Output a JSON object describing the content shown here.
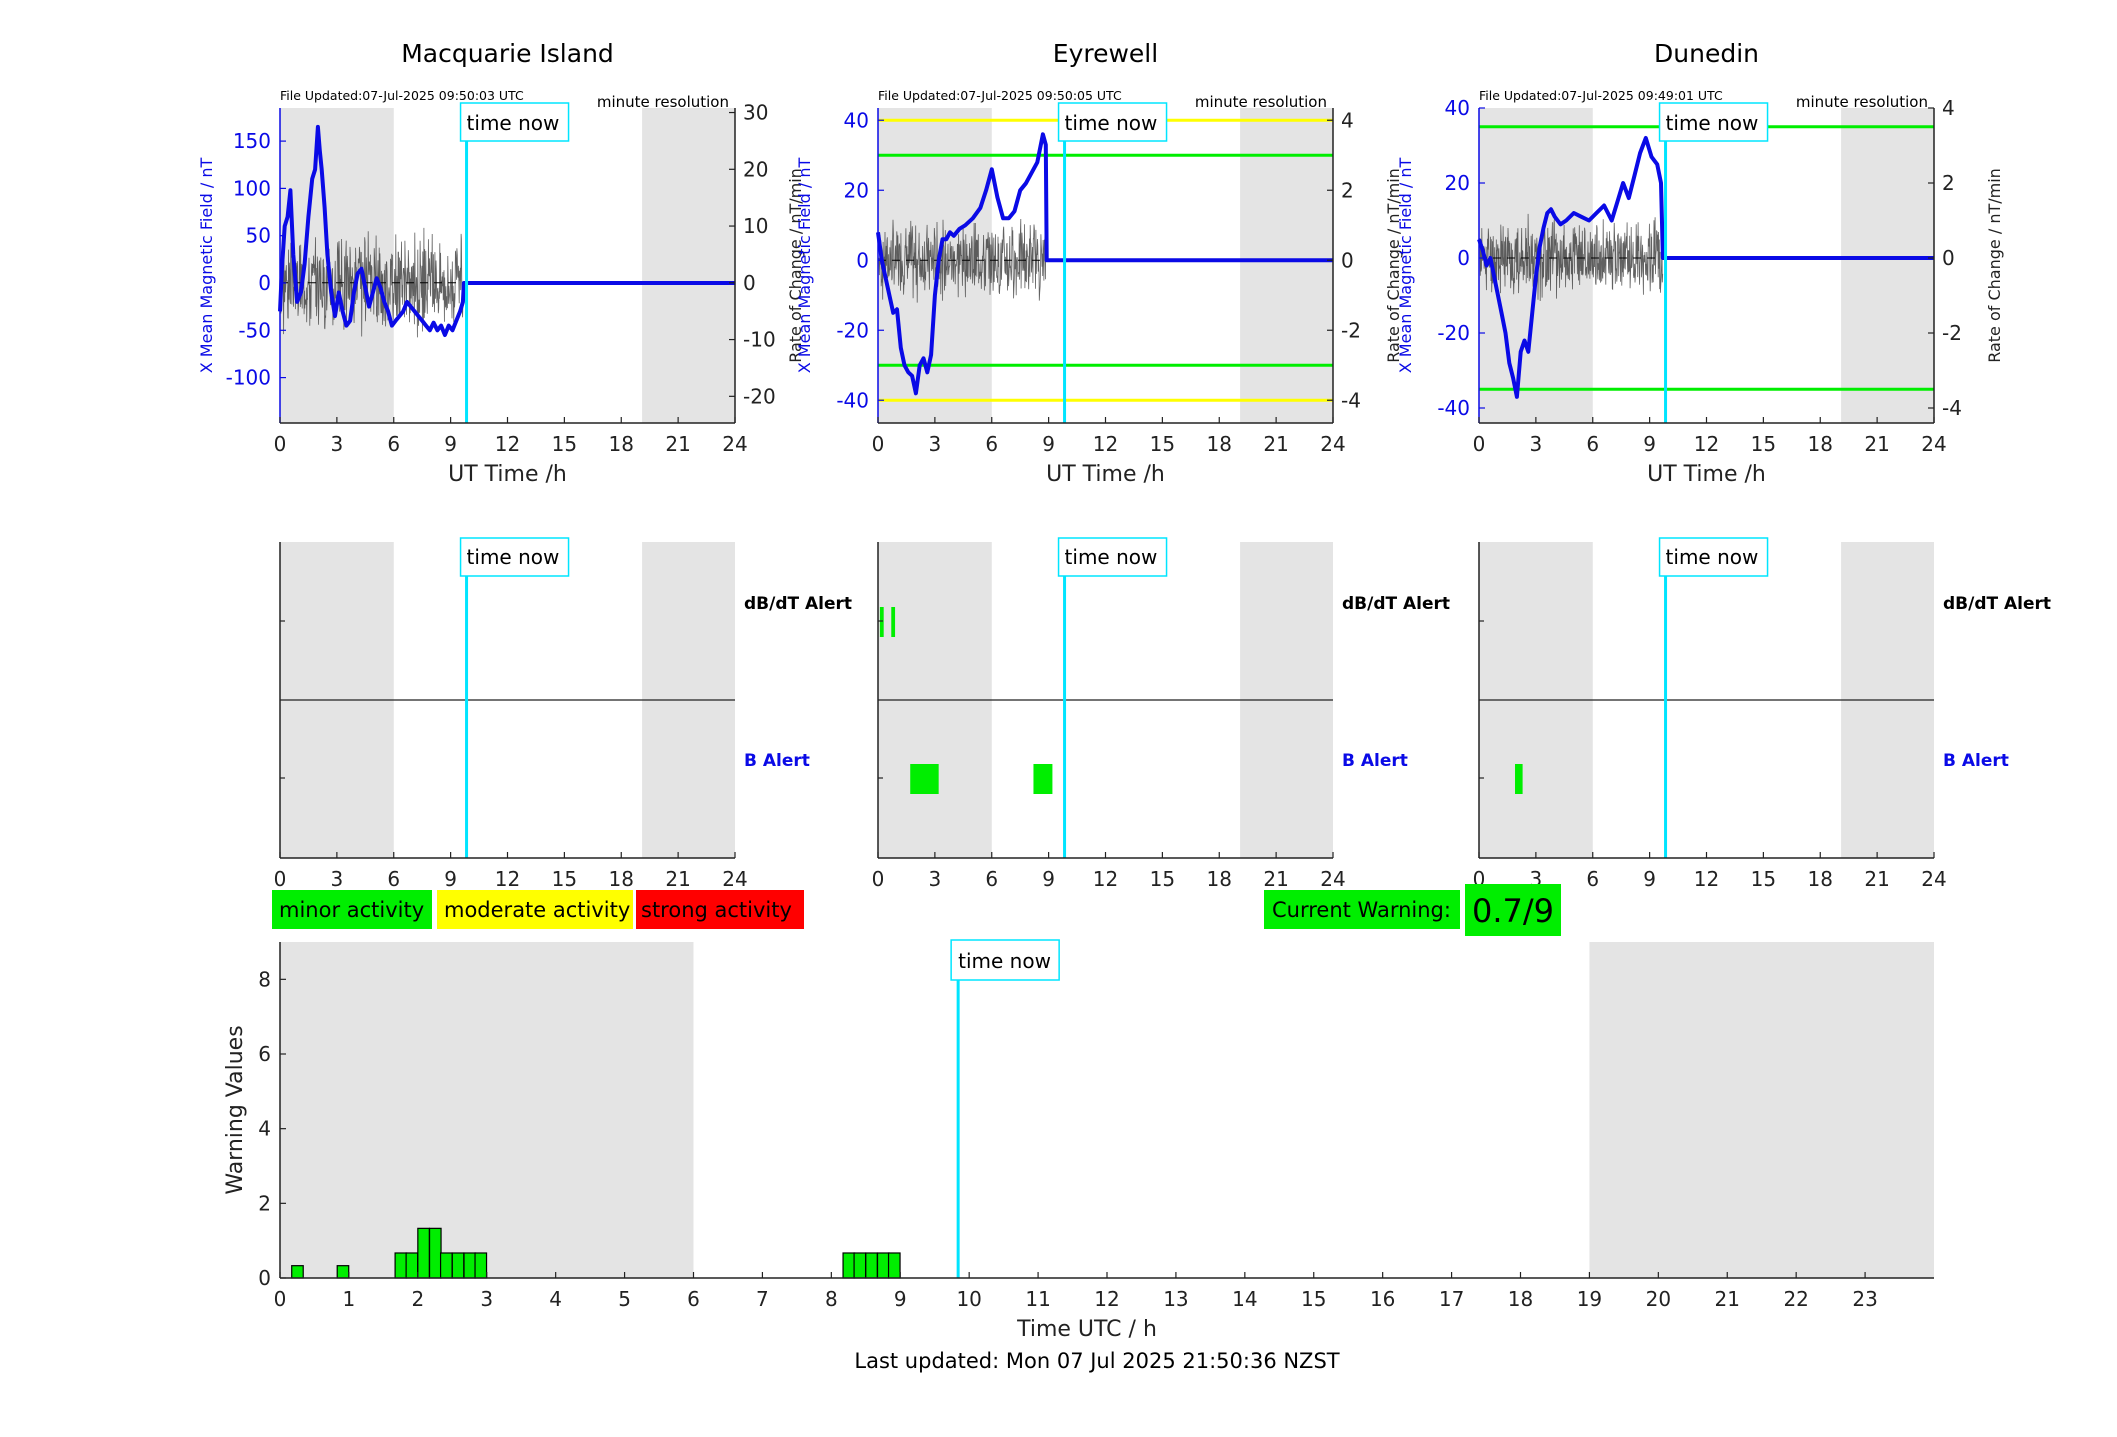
{
  "colors": {
    "field": "#0a0ae6",
    "rate": "#3a3a3a",
    "time_now": "#00e5ff",
    "night": "#e4e4e4",
    "green": "#00ee00",
    "yellow": "#ffff00",
    "red": "#ff0000"
  },
  "common": {
    "xlabel": "UT Time /h",
    "ylabel_left": "X Mean Magnetic Field / nT",
    "ylabel_right": "Rate of Change / nT/min",
    "resolution": "minute resolution",
    "time_now_label": "time now",
    "time_now_h": 9.84,
    "night_start_h": 19.1,
    "day_end_h": 6,
    "dbdt_alert_label": "dB/dT Alert",
    "b_alert_label": "B Alert"
  },
  "chart_data": [
    {
      "type": "line",
      "title": "Macquarie Island",
      "file_updated": "File Updated:07-Jul-2025 09:50:03 UTC",
      "xlim": [
        0,
        24
      ],
      "xticks": [
        0,
        3,
        6,
        9,
        12,
        15,
        18,
        21,
        24
      ],
      "ylim_left": [
        -148,
        185
      ],
      "yticks_left": [
        -100,
        -50,
        0,
        50,
        100,
        150
      ],
      "ylim_right": [
        -24.7,
        30.8
      ],
      "yticks_right": [
        -20,
        -10,
        0,
        10,
        20,
        30
      ],
      "threshold_lines": [],
      "field_series": {
        "name": "X Mean Magnetic Field",
        "x": [
          0,
          0.1,
          0.25,
          0.4,
          0.55,
          0.7,
          0.9,
          1.1,
          1.3,
          1.5,
          1.7,
          1.85,
          2.0,
          2.1,
          2.2,
          2.35,
          2.5,
          2.7,
          2.9,
          3.1,
          3.3,
          3.5,
          3.7,
          3.9,
          4.1,
          4.3,
          4.5,
          4.7,
          4.9,
          5.1,
          5.3,
          5.5,
          5.7,
          5.9,
          6.1,
          6.3,
          6.5,
          6.7,
          6.9,
          7.1,
          7.3,
          7.5,
          7.7,
          7.9,
          8.1,
          8.3,
          8.5,
          8.7,
          8.9,
          9.1,
          9.3,
          9.5,
          9.65,
          9.7,
          24
        ],
        "y": [
          -30,
          15,
          60,
          70,
          98,
          30,
          -20,
          -10,
          20,
          70,
          110,
          120,
          165,
          140,
          120,
          80,
          30,
          -10,
          -35,
          -10,
          -30,
          -45,
          -40,
          -10,
          10,
          15,
          -5,
          -25,
          -10,
          5,
          -5,
          -20,
          -30,
          -45,
          -40,
          -35,
          -30,
          -20,
          -25,
          -30,
          -35,
          -40,
          -45,
          -50,
          -42,
          -50,
          -45,
          -55,
          -45,
          -50,
          -40,
          -30,
          -20,
          0,
          0
        ]
      },
      "rate_series": {
        "name": "Rate of Change",
        "x_start": 0.05,
        "x_end": 9.7,
        "amplitude": 10,
        "seed": 3
      },
      "rate_baseline_dashed": [
        0,
        9.7
      ],
      "alerts": {
        "dbdt": [],
        "b": []
      }
    },
    {
      "type": "line",
      "title": "Eyrewell",
      "file_updated": "File Updated:07-Jul-2025 09:50:05 UTC",
      "xlim": [
        0,
        24
      ],
      "xticks": [
        0,
        3,
        6,
        9,
        12,
        15,
        18,
        21,
        24
      ],
      "ylim_left": [
        -46.5,
        43.5
      ],
      "yticks_left": [
        -40,
        -20,
        0,
        20,
        40
      ],
      "ylim_right": [
        -4.65,
        4.35
      ],
      "yticks_right": [
        -4,
        -2,
        0,
        2,
        4
      ],
      "threshold_lines": [
        {
          "value": 40,
          "color": "yellow"
        },
        {
          "value": 30,
          "color": "green"
        },
        {
          "value": -30,
          "color": "green"
        },
        {
          "value": -40,
          "color": "yellow"
        }
      ],
      "field_series": {
        "name": "X Mean Magnetic Field",
        "x": [
          0,
          0.2,
          0.4,
          0.6,
          0.8,
          1.0,
          1.2,
          1.4,
          1.6,
          1.8,
          2.0,
          2.2,
          2.4,
          2.6,
          2.8,
          3.0,
          3.2,
          3.4,
          3.6,
          3.8,
          4.0,
          4.3,
          4.6,
          5.0,
          5.4,
          5.7,
          6.0,
          6.3,
          6.6,
          6.9,
          7.2,
          7.5,
          7.8,
          8.1,
          8.4,
          8.7,
          8.85,
          8.9,
          24
        ],
        "y": [
          8,
          0,
          -5,
          -10,
          -15,
          -14,
          -25,
          -30,
          -32,
          -33,
          -38,
          -30,
          -28,
          -32,
          -27,
          -10,
          0,
          6,
          6,
          8,
          7,
          9,
          10,
          12,
          15,
          20,
          26,
          18,
          12,
          12,
          14,
          20,
          22,
          25,
          28,
          36,
          33,
          0,
          0
        ]
      },
      "rate_series": {
        "name": "Rate of Change",
        "x_start": 0.05,
        "x_end": 8.9,
        "amplitude": 1.3,
        "seed": 7
      },
      "rate_baseline_dashed": [
        0,
        8.9
      ],
      "alerts": {
        "dbdt": [
          [
            0.1,
            0.3
          ],
          [
            0.7,
            0.9
          ]
        ],
        "b": [
          [
            1.7,
            3.2
          ],
          [
            8.2,
            9.2
          ]
        ]
      }
    },
    {
      "type": "line",
      "title": "Dunedin",
      "file_updated": "File Updated:07-Jul-2025 09:49:01 UTC",
      "xlim": [
        0,
        24
      ],
      "xticks": [
        0,
        3,
        6,
        9,
        12,
        15,
        18,
        21,
        24
      ],
      "ylim_left": [
        -44,
        40
      ],
      "yticks_left": [
        -40,
        -20,
        0,
        20,
        40
      ],
      "ylim_right": [
        -4.4,
        4.0
      ],
      "yticks_right": [
        -4,
        -2,
        0,
        2,
        4
      ],
      "threshold_lines": [
        {
          "value": 35,
          "color": "green"
        },
        {
          "value": -35,
          "color": "green"
        }
      ],
      "field_series": {
        "name": "X Mean Magnetic Field",
        "x": [
          0,
          0.2,
          0.4,
          0.6,
          0.8,
          1.0,
          1.2,
          1.4,
          1.6,
          1.8,
          2.0,
          2.2,
          2.4,
          2.6,
          2.8,
          3.0,
          3.2,
          3.4,
          3.6,
          3.8,
          4.0,
          4.3,
          4.6,
          5.0,
          5.4,
          5.8,
          6.2,
          6.6,
          7.0,
          7.3,
          7.6,
          7.9,
          8.2,
          8.5,
          8.8,
          9.1,
          9.4,
          9.6,
          9.7,
          24
        ],
        "y": [
          5,
          2,
          -2,
          0,
          -5,
          -10,
          -15,
          -20,
          -28,
          -32,
          -37,
          -25,
          -22,
          -25,
          -15,
          -5,
          3,
          8,
          12,
          13,
          11,
          9,
          10,
          12,
          11,
          10,
          12,
          14,
          10,
          15,
          20,
          16,
          22,
          28,
          32,
          27,
          25,
          20,
          0,
          0
        ]
      },
      "rate_series": {
        "name": "Rate of Change",
        "x_start": 0.05,
        "x_end": 9.7,
        "amplitude": 1.2,
        "seed": 11
      },
      "rate_baseline_dashed": [
        0,
        9.7
      ],
      "alerts": {
        "dbdt": [],
        "b": [
          [
            1.9,
            2.3
          ]
        ]
      }
    },
    {
      "type": "bar",
      "xlabel": "Time UTC / h",
      "ylabel": "Warning Values",
      "xlim": [
        0,
        24
      ],
      "xticks": [
        0,
        1,
        2,
        3,
        4,
        5,
        6,
        7,
        8,
        9,
        10,
        11,
        12,
        13,
        14,
        15,
        16,
        17,
        18,
        19,
        20,
        21,
        22,
        23
      ],
      "ylim": [
        0,
        9
      ],
      "yticks": [
        0,
        2,
        4,
        6,
        8
      ],
      "bar_width_h": 0.167,
      "bars": [
        {
          "x": 0.17,
          "value": 0.33
        },
        {
          "x": 0.83,
          "value": 0.33
        },
        {
          "x": 1.67,
          "value": 0.67
        },
        {
          "x": 1.83,
          "value": 0.67
        },
        {
          "x": 2.0,
          "value": 1.33
        },
        {
          "x": 2.17,
          "value": 1.33
        },
        {
          "x": 2.33,
          "value": 0.67
        },
        {
          "x": 2.5,
          "value": 0.67
        },
        {
          "x": 2.67,
          "value": 0.67
        },
        {
          "x": 2.83,
          "value": 0.67
        },
        {
          "x": 8.17,
          "value": 0.67
        },
        {
          "x": 8.33,
          "value": 0.67
        },
        {
          "x": 8.5,
          "value": 0.67
        },
        {
          "x": 8.67,
          "value": 0.67
        },
        {
          "x": 8.83,
          "value": 0.67
        }
      ]
    }
  ],
  "legend": {
    "minor": "minor activity",
    "moderate": "moderate activity",
    "strong": "strong activity"
  },
  "current_warning": {
    "label": "Current Warning:",
    "value": "0.7/9"
  },
  "footer": {
    "last_updated": "Last updated: Mon 07 Jul 2025 21:50:36 NZST"
  }
}
